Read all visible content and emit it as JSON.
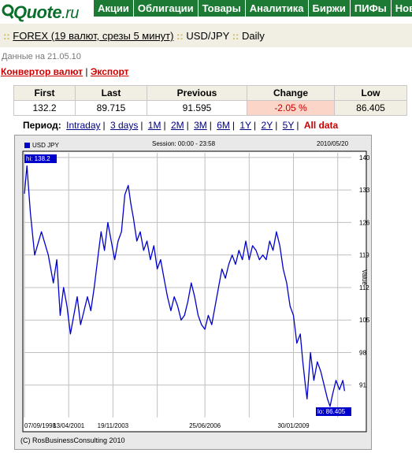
{
  "logo": {
    "brand": "Quote",
    "tld": ".ru"
  },
  "nav": [
    "Акции",
    "Облигации",
    "Товары",
    "Аналитика",
    "Биржи",
    "ПИФы",
    "Нов"
  ],
  "breadcrumb": {
    "sep": "::",
    "market": "FOREX (19 валют, срезы 5 минут)",
    "pair": "USD/JPY",
    "interval": "Daily"
  },
  "date_line": "Данные на 21.05.10",
  "links": {
    "converter": "Конвертор валют",
    "separator": "|",
    "export": "Экспорт"
  },
  "quote_table": {
    "headers": [
      "First",
      "Last",
      "Previous",
      "Change",
      "Low"
    ],
    "values": [
      "132.2",
      "89.715",
      "91.595",
      "-2.05 %",
      "86.405"
    ]
  },
  "period": {
    "label": "Период:",
    "options": [
      "Intraday",
      "3 days",
      "1M",
      "2M",
      "3M",
      "6M",
      "1Y",
      "2Y",
      "5Y"
    ],
    "active": "All data"
  },
  "chart": {
    "legend": "USD JPY",
    "session": "Session: 00:00 - 23:58",
    "date": "2010/05/20",
    "y_axis_label": "Value",
    "hi_label": "hi: 138.2",
    "lo_label": "lo: 86.405",
    "copyright": "(C) RosBusinessConsulting 2010"
  },
  "chart_data": {
    "type": "line",
    "series": [
      {
        "name": "USD JPY",
        "points": [
          [
            0,
            132.2
          ],
          [
            0.15,
            138.2
          ],
          [
            0.35,
            128
          ],
          [
            0.6,
            119
          ],
          [
            1.0,
            124
          ],
          [
            1.4,
            119
          ],
          [
            1.7,
            113
          ],
          [
            1.9,
            118
          ],
          [
            2.1,
            106
          ],
          [
            2.3,
            112
          ],
          [
            2.5,
            108
          ],
          [
            2.7,
            102
          ],
          [
            2.9,
            106
          ],
          [
            3.1,
            110
          ],
          [
            3.3,
            104
          ],
          [
            3.5,
            107
          ],
          [
            3.7,
            110
          ],
          [
            3.9,
            107
          ],
          [
            4.1,
            112
          ],
          [
            4.3,
            118
          ],
          [
            4.5,
            124
          ],
          [
            4.7,
            120
          ],
          [
            4.9,
            126
          ],
          [
            5.1,
            122
          ],
          [
            5.3,
            118
          ],
          [
            5.5,
            122
          ],
          [
            5.7,
            124
          ],
          [
            5.9,
            132
          ],
          [
            6.1,
            134
          ],
          [
            6.25,
            130
          ],
          [
            6.4,
            127
          ],
          [
            6.6,
            122
          ],
          [
            6.8,
            124
          ],
          [
            7.0,
            120
          ],
          [
            7.2,
            122
          ],
          [
            7.4,
            118
          ],
          [
            7.6,
            121
          ],
          [
            7.8,
            116
          ],
          [
            8.0,
            118
          ],
          [
            8.2,
            114
          ],
          [
            8.4,
            110
          ],
          [
            8.6,
            107
          ],
          [
            8.8,
            110
          ],
          [
            9.0,
            108
          ],
          [
            9.2,
            105
          ],
          [
            9.4,
            106
          ],
          [
            9.6,
            109
          ],
          [
            9.8,
            113
          ],
          [
            10.0,
            110
          ],
          [
            10.2,
            106
          ],
          [
            10.4,
            104
          ],
          [
            10.6,
            103
          ],
          [
            10.8,
            106
          ],
          [
            11.0,
            104
          ],
          [
            11.2,
            108
          ],
          [
            11.4,
            112
          ],
          [
            11.6,
            116
          ],
          [
            11.8,
            114
          ],
          [
            12.0,
            117
          ],
          [
            12.2,
            119
          ],
          [
            12.4,
            117
          ],
          [
            12.6,
            120
          ],
          [
            12.8,
            118
          ],
          [
            13.0,
            122
          ],
          [
            13.2,
            118
          ],
          [
            13.4,
            121
          ],
          [
            13.6,
            120
          ],
          [
            13.8,
            118
          ],
          [
            14.0,
            119
          ],
          [
            14.2,
            118
          ],
          [
            14.4,
            122
          ],
          [
            14.6,
            120
          ],
          [
            14.8,
            124
          ],
          [
            15.0,
            121
          ],
          [
            15.2,
            116
          ],
          [
            15.4,
            113
          ],
          [
            15.6,
            108
          ],
          [
            15.8,
            106
          ],
          [
            16.0,
            100
          ],
          [
            16.2,
            102
          ],
          [
            16.35,
            96
          ],
          [
            16.5,
            91
          ],
          [
            16.6,
            88
          ],
          [
            16.8,
            98
          ],
          [
            17.0,
            92
          ],
          [
            17.2,
            96
          ],
          [
            17.4,
            94
          ],
          [
            17.6,
            91
          ],
          [
            17.8,
            88
          ],
          [
            17.95,
            86.405
          ],
          [
            18.1,
            89
          ],
          [
            18.3,
            92
          ],
          [
            18.5,
            90
          ],
          [
            18.7,
            92
          ],
          [
            18.8,
            89.715
          ]
        ]
      }
    ],
    "x_ticks": [
      {
        "x": 0,
        "label": "07/09/1998"
      },
      {
        "x": 2.6,
        "label": "13/04/2001"
      },
      {
        "x": 5.2,
        "label": "19/11/2003"
      },
      {
        "x": 7.8,
        "label": ""
      },
      {
        "x": 10.6,
        "label": "25/06/2006"
      },
      {
        "x": 13.2,
        "label": ""
      },
      {
        "x": 15.8,
        "label": "30/01/2009"
      },
      {
        "x": 18.4,
        "label": ""
      }
    ],
    "y_ticks": [
      140,
      133,
      126,
      119,
      112,
      105,
      98,
      91
    ],
    "xlim": [
      0,
      19.2
    ],
    "ylim": [
      84,
      141
    ],
    "grid": true,
    "color": "#0000cc"
  }
}
